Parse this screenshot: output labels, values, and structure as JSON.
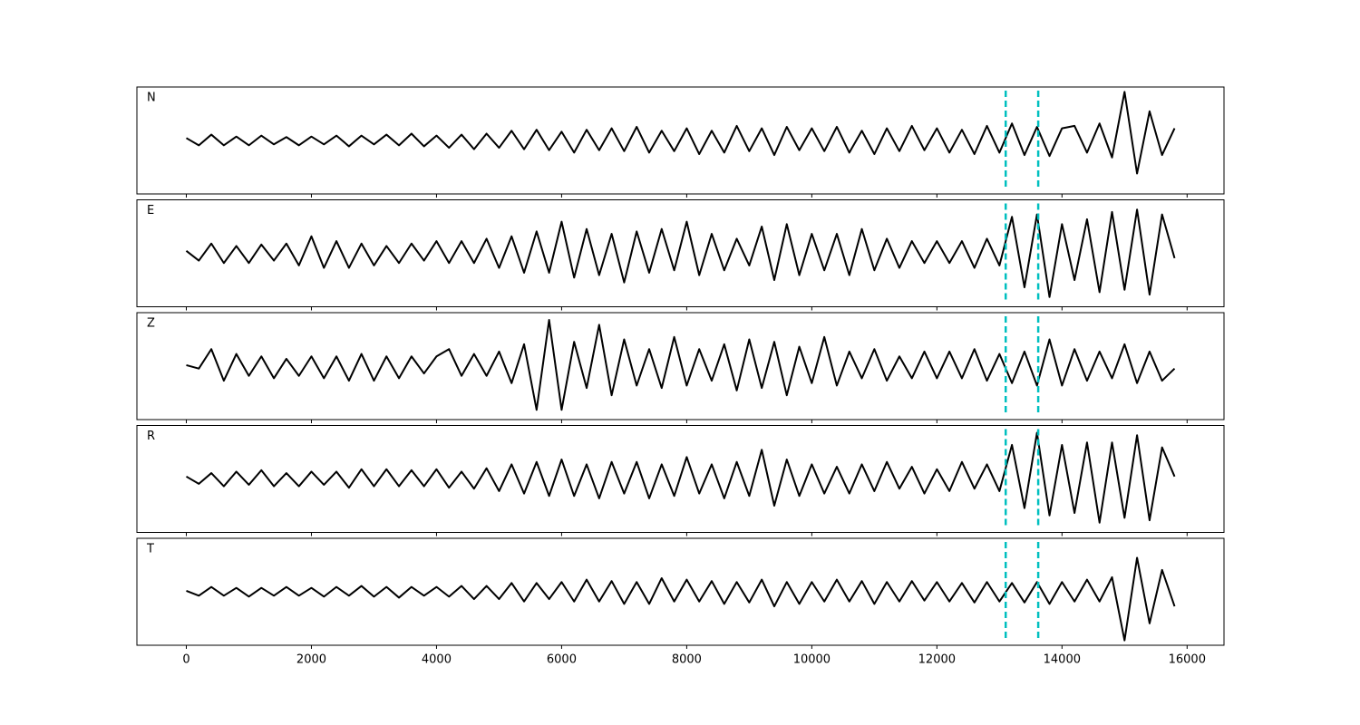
{
  "chart_data": {
    "type": "line",
    "layout": "stacked",
    "x": [
      0,
      200,
      400,
      600,
      800,
      1000,
      1200,
      1400,
      1600,
      1800,
      2000,
      2200,
      2400,
      2600,
      2800,
      3000,
      3200,
      3400,
      3600,
      3800,
      4000,
      4200,
      4400,
      4600,
      4800,
      5000,
      5200,
      5400,
      5600,
      5800,
      6000,
      6200,
      6400,
      6600,
      6800,
      7000,
      7200,
      7400,
      7600,
      7800,
      8000,
      8200,
      8400,
      8600,
      8800,
      9000,
      9200,
      9400,
      9600,
      9800,
      10000,
      10200,
      10400,
      10600,
      10800,
      11000,
      11200,
      11400,
      11600,
      11800,
      12000,
      12200,
      12400,
      12600,
      12800,
      13000,
      13200,
      13400,
      13600,
      13800,
      14000,
      14200,
      14400,
      14600,
      14800,
      15000,
      15200,
      15400,
      15600,
      15800
    ],
    "xlim": [
      -790,
      16590
    ],
    "xticks": [
      0,
      2000,
      4000,
      6000,
      8000,
      10000,
      12000,
      14000,
      16000
    ],
    "ylim": [
      -1.1,
      1.1
    ],
    "line_color": "#000000",
    "vlines": [
      13100,
      13620
    ],
    "vline_color": "#00bfbf",
    "series": [
      {
        "name": "N",
        "values": [
          0.05,
          -0.1,
          0.12,
          -0.1,
          0.08,
          -0.1,
          0.1,
          -0.08,
          0.07,
          -0.1,
          0.08,
          -0.08,
          0.1,
          -0.12,
          0.1,
          -0.08,
          0.12,
          -0.1,
          0.14,
          -0.12,
          0.1,
          -0.15,
          0.12,
          -0.18,
          0.14,
          -0.15,
          0.2,
          -0.18,
          0.22,
          -0.2,
          0.18,
          -0.25,
          0.22,
          -0.2,
          0.25,
          -0.22,
          0.28,
          -0.25,
          0.2,
          -0.22,
          0.25,
          -0.28,
          0.2,
          -0.25,
          0.3,
          -0.22,
          0.25,
          -0.3,
          0.28,
          -0.2,
          0.25,
          -0.22,
          0.28,
          -0.25,
          0.2,
          -0.28,
          0.25,
          -0.22,
          0.3,
          -0.2,
          0.25,
          -0.25,
          0.22,
          -0.28,
          0.3,
          -0.25,
          0.35,
          -0.3,
          0.28,
          -0.32,
          0.25,
          0.3,
          -0.25,
          0.35,
          -0.35,
          1.0,
          -0.68,
          0.6,
          -0.3,
          0.25
        ]
      },
      {
        "name": "E",
        "values": [
          0.05,
          -0.15,
          0.2,
          -0.2,
          0.15,
          -0.2,
          0.18,
          -0.15,
          0.2,
          -0.25,
          0.35,
          -0.3,
          0.25,
          -0.3,
          0.2,
          -0.25,
          0.15,
          -0.2,
          0.2,
          -0.15,
          0.25,
          -0.2,
          0.25,
          -0.2,
          0.3,
          -0.3,
          0.35,
          -0.4,
          0.45,
          -0.4,
          0.65,
          -0.5,
          0.5,
          -0.45,
          0.4,
          -0.6,
          0.45,
          -0.4,
          0.5,
          -0.35,
          0.65,
          -0.45,
          0.4,
          -0.35,
          0.3,
          -0.25,
          0.55,
          -0.55,
          0.6,
          -0.45,
          0.4,
          -0.35,
          0.4,
          -0.45,
          0.5,
          -0.35,
          0.3,
          -0.3,
          0.25,
          -0.2,
          0.25,
          -0.2,
          0.25,
          -0.3,
          0.3,
          -0.25,
          0.75,
          -0.7,
          0.8,
          -0.9,
          0.6,
          -0.55,
          0.7,
          -0.8,
          0.85,
          -0.75,
          0.9,
          -0.85,
          0.8,
          -0.1
        ]
      },
      {
        "name": "Z",
        "values": [
          0.02,
          -0.05,
          0.35,
          -0.3,
          0.25,
          -0.2,
          0.2,
          -0.25,
          0.15,
          -0.2,
          0.2,
          -0.25,
          0.2,
          -0.3,
          0.25,
          -0.3,
          0.2,
          -0.25,
          0.2,
          -0.15,
          0.2,
          0.35,
          -0.2,
          0.25,
          -0.2,
          0.3,
          -0.35,
          0.45,
          -0.9,
          0.95,
          -0.9,
          0.5,
          -0.45,
          0.85,
          -0.6,
          0.55,
          -0.4,
          0.35,
          -0.45,
          0.6,
          -0.4,
          0.35,
          -0.3,
          0.45,
          -0.5,
          0.55,
          -0.45,
          0.5,
          -0.6,
          0.4,
          -0.35,
          0.6,
          -0.4,
          0.3,
          -0.25,
          0.35,
          -0.3,
          0.2,
          -0.25,
          0.3,
          -0.25,
          0.3,
          -0.25,
          0.35,
          -0.3,
          0.25,
          -0.35,
          0.3,
          -0.4,
          0.55,
          -0.4,
          0.35,
          -0.3,
          0.3,
          -0.25,
          0.45,
          -0.35,
          0.3,
          -0.3,
          -0.05
        ]
      },
      {
        "name": "R",
        "values": [
          0.05,
          -0.1,
          0.12,
          -0.15,
          0.15,
          -0.12,
          0.18,
          -0.15,
          0.12,
          -0.15,
          0.15,
          -0.12,
          0.15,
          -0.18,
          0.2,
          -0.15,
          0.2,
          -0.15,
          0.18,
          -0.15,
          0.2,
          -0.18,
          0.15,
          -0.2,
          0.22,
          -0.25,
          0.3,
          -0.3,
          0.35,
          -0.35,
          0.4,
          -0.35,
          0.3,
          -0.4,
          0.35,
          -0.3,
          0.35,
          -0.4,
          0.3,
          -0.35,
          0.45,
          -0.3,
          0.3,
          -0.4,
          0.35,
          -0.35,
          0.6,
          -0.55,
          0.4,
          -0.35,
          0.3,
          -0.3,
          0.25,
          -0.3,
          0.3,
          -0.25,
          0.35,
          -0.2,
          0.25,
          -0.3,
          0.2,
          -0.25,
          0.35,
          -0.2,
          0.3,
          -0.25,
          0.7,
          -0.6,
          0.95,
          -0.75,
          0.7,
          -0.7,
          0.75,
          -0.9,
          0.75,
          -0.8,
          0.9,
          -0.85,
          0.65,
          0.05
        ]
      },
      {
        "name": "T",
        "values": [
          0.02,
          -0.08,
          0.1,
          -0.08,
          0.08,
          -0.1,
          0.08,
          -0.08,
          0.1,
          -0.08,
          0.08,
          -0.1,
          0.1,
          -0.08,
          0.12,
          -0.1,
          0.1,
          -0.12,
          0.1,
          -0.08,
          0.1,
          -0.1,
          0.12,
          -0.15,
          0.12,
          -0.15,
          0.18,
          -0.2,
          0.18,
          -0.15,
          0.2,
          -0.2,
          0.25,
          -0.2,
          0.22,
          -0.25,
          0.2,
          -0.25,
          0.28,
          -0.2,
          0.25,
          -0.2,
          0.22,
          -0.25,
          0.2,
          -0.22,
          0.25,
          -0.3,
          0.2,
          -0.25,
          0.2,
          -0.2,
          0.25,
          -0.2,
          0.22,
          -0.25,
          0.2,
          -0.2,
          0.22,
          -0.18,
          0.2,
          -0.2,
          0.18,
          -0.22,
          0.2,
          -0.2,
          0.18,
          -0.22,
          0.2,
          -0.25,
          0.2,
          -0.2,
          0.25,
          -0.2,
          0.3,
          -1.0,
          0.7,
          -0.65,
          0.45,
          -0.3
        ]
      }
    ]
  }
}
